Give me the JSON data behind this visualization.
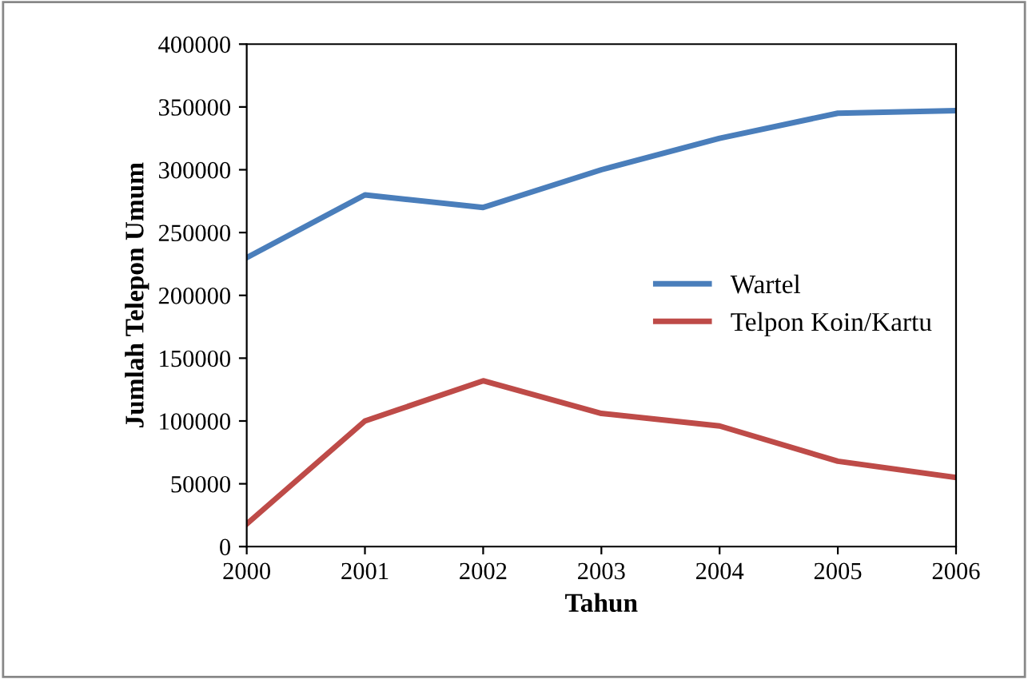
{
  "chart_data": {
    "type": "line",
    "xlabel": "Tahun",
    "ylabel": "Jumlah Telepon Umum",
    "x": [
      2000,
      2001,
      2002,
      2003,
      2004,
      2005,
      2006
    ],
    "series": [
      {
        "name": "Wartel",
        "color": "#4a7ebb",
        "values": [
          230000,
          280000,
          270000,
          300000,
          325000,
          345000,
          347000
        ]
      },
      {
        "name": "Telpon Koin/Kartu",
        "color": "#be4b48",
        "values": [
          18000,
          100000,
          132000,
          106000,
          96000,
          68000,
          55000
        ]
      }
    ],
    "xlim": [
      2000,
      2006
    ],
    "xticks": [
      2000,
      2001,
      2002,
      2003,
      2004,
      2005,
      2006
    ],
    "ylim": [
      0,
      400000
    ],
    "yticks": [
      0,
      50000,
      100000,
      150000,
      200000,
      250000,
      300000,
      350000,
      400000
    ],
    "grid": false,
    "legend": "right",
    "marker": "none",
    "line_style": "solid"
  }
}
